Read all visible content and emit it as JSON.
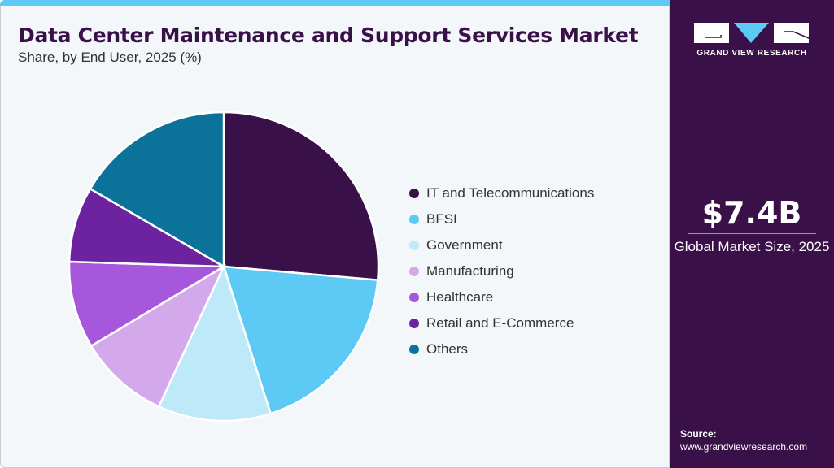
{
  "header": {
    "title": "Data Center Maintenance and Support Services Market",
    "subtitle": "Share, by End User, 2025 (%)"
  },
  "chart_data": {
    "type": "pie",
    "title": "Data Center Maintenance and Support Services Market",
    "subtitle": "Share, by End User, 2025 (%)",
    "categories": [
      "IT and Telecommunications",
      "BFSI",
      "Government",
      "Manufacturing",
      "Healthcare",
      "Retail and E-Commerce",
      "Others"
    ],
    "values": [
      26.4,
      18.7,
      11.8,
      9.5,
      9.1,
      7.9,
      16.6
    ],
    "colors": [
      "#3a1049",
      "#5ccaf5",
      "#bde9f9",
      "#d4a9ec",
      "#a757db",
      "#6d23a0",
      "#0b7399"
    ],
    "start": "top",
    "direction": "clockwise",
    "legend": "right"
  },
  "side": {
    "brand": "GRAND VIEW RESEARCH",
    "value": "$7.4B",
    "value_label": "Global Market Size, 2025",
    "source_label": "Source:",
    "source_url": "www.grandviewresearch.com"
  }
}
